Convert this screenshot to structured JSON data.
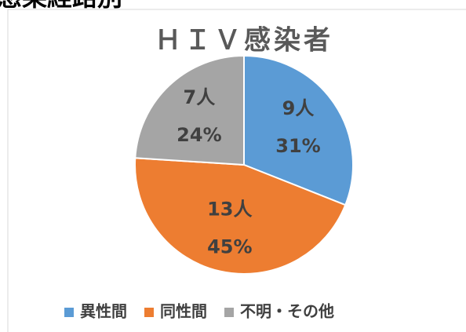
{
  "page_heading": "感染経路別",
  "chart_data": {
    "type": "pie",
    "title": "ＨＩＶ感染者",
    "categories": [
      "異性間",
      "同性間",
      "不明・その他"
    ],
    "values": [
      31,
      45,
      24
    ],
    "value_labels": [
      "31%",
      "45%",
      "24%"
    ],
    "counts": [
      9,
      13,
      7
    ],
    "count_labels": [
      "9人",
      "13人",
      "7人"
    ],
    "colors": [
      "#5b9bd5",
      "#ed7d31",
      "#a5a5a5"
    ],
    "legend": "bottom"
  }
}
